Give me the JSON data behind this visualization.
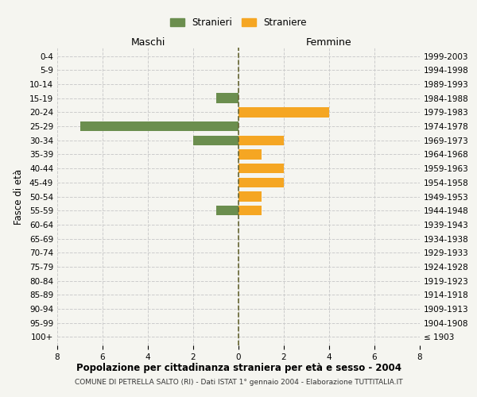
{
  "age_groups": [
    "100+",
    "95-99",
    "90-94",
    "85-89",
    "80-84",
    "75-79",
    "70-74",
    "65-69",
    "60-64",
    "55-59",
    "50-54",
    "45-49",
    "40-44",
    "35-39",
    "30-34",
    "25-29",
    "20-24",
    "15-19",
    "10-14",
    "5-9",
    "0-4"
  ],
  "birth_years": [
    "≤ 1903",
    "1904-1908",
    "1909-1913",
    "1914-1918",
    "1919-1923",
    "1924-1928",
    "1929-1933",
    "1934-1938",
    "1939-1943",
    "1944-1948",
    "1949-1953",
    "1954-1958",
    "1959-1963",
    "1964-1968",
    "1969-1973",
    "1974-1978",
    "1979-1983",
    "1984-1988",
    "1989-1993",
    "1994-1998",
    "1999-2003"
  ],
  "stranieri": [
    0,
    0,
    0,
    0,
    0,
    0,
    0,
    0,
    0,
    1,
    0,
    0,
    0,
    0,
    2,
    7,
    0,
    1,
    0,
    0,
    0
  ],
  "straniere": [
    0,
    0,
    0,
    0,
    0,
    0,
    0,
    0,
    0,
    1,
    1,
    2,
    2,
    1,
    2,
    0,
    4,
    0,
    0,
    0,
    0
  ],
  "color_stranieri": "#6b8e4e",
  "color_straniere": "#f5a623",
  "title": "Popolazione per cittadinanza straniera per età e sesso - 2004",
  "subtitle": "COMUNE DI PETRELLA SALTO (RI) - Dati ISTAT 1° gennaio 2004 - Elaborazione TUTTITALIA.IT",
  "ylabel_left": "Fasce di età",
  "xlabel_left": "Maschi",
  "xlabel_right": "Femmine",
  "legend_stranieri": "Stranieri",
  "legend_straniere": "Straniere",
  "xlim": 8,
  "background_color": "#f5f5f0",
  "grid_color": "#cccccc"
}
